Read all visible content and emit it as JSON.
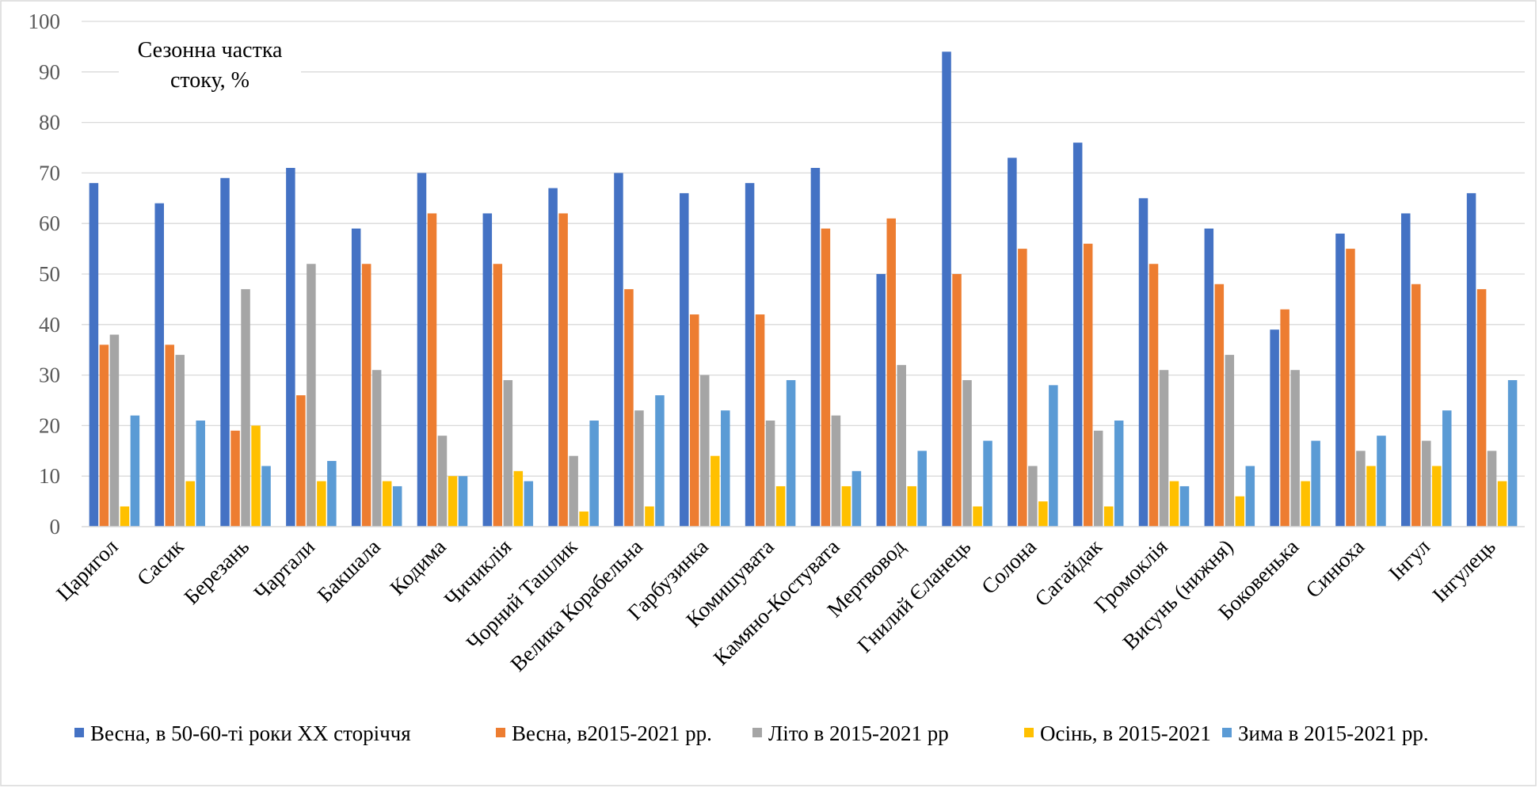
{
  "chart_data": {
    "type": "bar",
    "title": "Сезонна частка стоку, %",
    "ylim": [
      0,
      100
    ],
    "yticks": [
      0,
      10,
      20,
      30,
      40,
      50,
      60,
      70,
      80,
      90,
      100
    ],
    "grid": true,
    "legend_position": "bottom",
    "categories": [
      "Царигол",
      "Сасик",
      "Березань",
      "Чартали",
      "Бакшала",
      "Кодима",
      "Чичиклія",
      "Чорний Ташлик",
      "Велика Корабельна",
      "Гарбузинка",
      "Комишувата",
      "Камяно-Костувата",
      "Мертвовод",
      "Гнилий Єланець",
      "Солона",
      "Сагайдак",
      "Громоклія",
      "Висунь (нижня)",
      "Боковенька",
      "Синюха",
      "Інгул",
      "Інгулець"
    ],
    "series": [
      {
        "name": "Весна, в 50-60-ті роки ХХ сторіччя",
        "color": "#4472C4",
        "values": [
          68,
          64,
          69,
          71,
          59,
          70,
          62,
          67,
          70,
          66,
          68,
          71,
          50,
          94,
          73,
          76,
          65,
          59,
          39,
          58,
          62,
          66
        ]
      },
      {
        "name": "Весна, в2015-2021 рр.",
        "color": "#ED7D31",
        "values": [
          36,
          36,
          19,
          26,
          52,
          62,
          52,
          62,
          47,
          42,
          42,
          59,
          61,
          50,
          55,
          56,
          52,
          48,
          43,
          55,
          48,
          47
        ]
      },
      {
        "name": "Літо в 2015-2021 рр",
        "color": "#A5A5A5",
        "values": [
          38,
          34,
          47,
          52,
          31,
          18,
          29,
          14,
          23,
          30,
          21,
          22,
          32,
          29,
          12,
          19,
          31,
          34,
          31,
          15,
          17,
          15
        ]
      },
      {
        "name": "Осінь, в 2015-2021",
        "color": "#FFC000",
        "values": [
          4,
          9,
          20,
          9,
          9,
          10,
          11,
          3,
          4,
          14,
          8,
          8,
          8,
          4,
          5,
          4,
          9,
          6,
          9,
          12,
          12,
          9
        ]
      },
      {
        "name": "Зима в 2015-2021 рр.",
        "color": "#5B9BD5",
        "values": [
          22,
          21,
          12,
          13,
          8,
          10,
          9,
          21,
          26,
          23,
          29,
          11,
          15,
          17,
          28,
          21,
          8,
          12,
          17,
          18,
          23,
          29
        ]
      }
    ]
  }
}
